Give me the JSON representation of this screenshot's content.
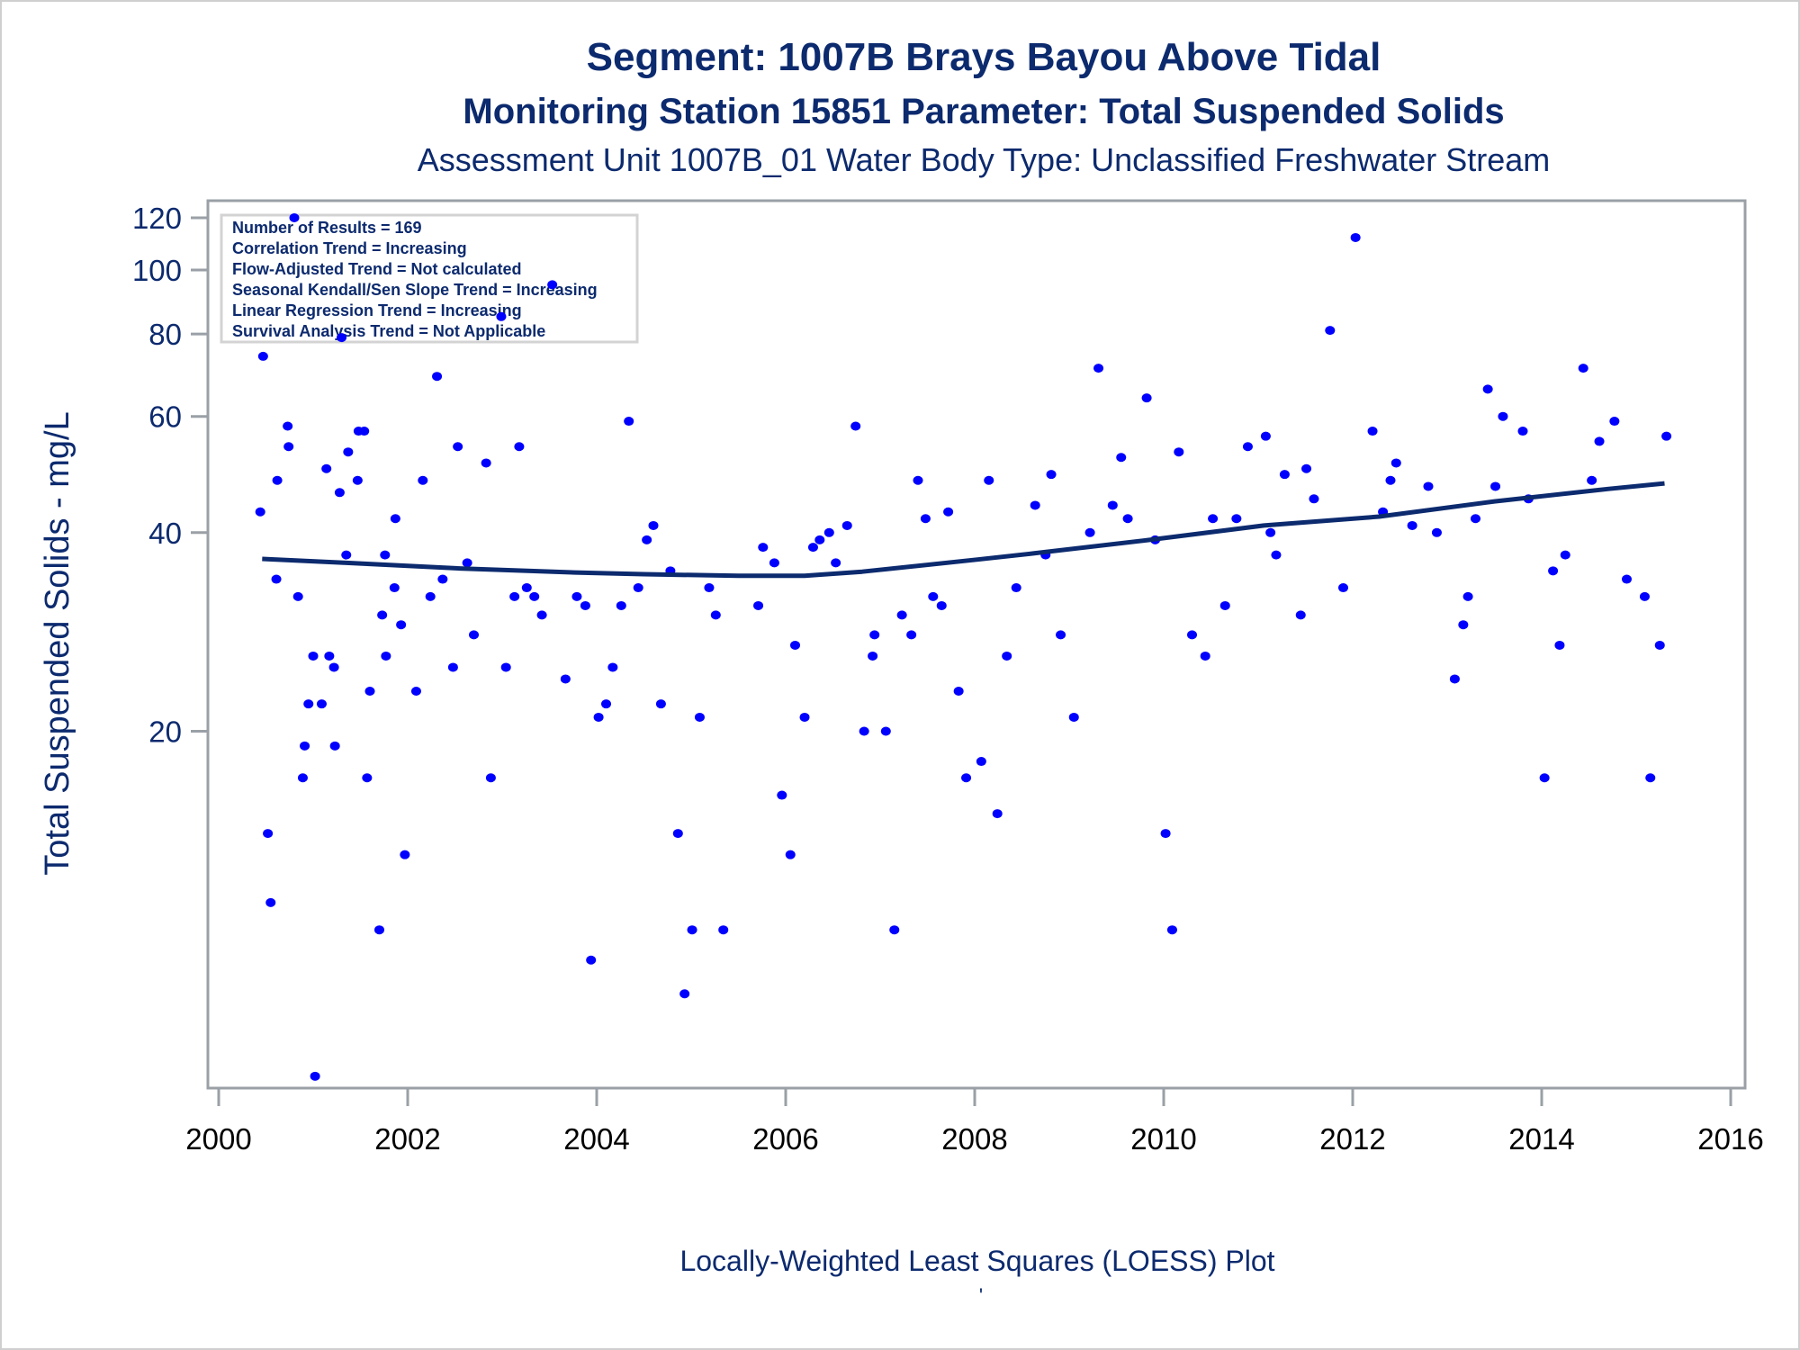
{
  "chart_data": {
    "type": "scatter",
    "title": "Segment: 1007B  Brays Bayou Above Tidal",
    "subtitle": "Monitoring Station 15851 Parameter: Total Suspended Solids",
    "subtitle2": "Assessment Unit 1007B_01    Water Body Type: Unclassified Freshwater Stream",
    "xlabel": "",
    "ylabel": "Total Suspended Solids - mg/L",
    "footnote": "Locally-Weighted Least Squares (LOESS) Plot",
    "footnote_mark": "'",
    "xlim": [
      2000,
      2016
    ],
    "ylim": [
      5.8,
      127
    ],
    "yscale": "log",
    "grid": false,
    "xticks": [
      "2000",
      "2002",
      "2004",
      "2006",
      "2008",
      "2010",
      "2012",
      "2014",
      "2016"
    ],
    "yticks": [
      "20",
      "40",
      "60",
      "80",
      "100",
      "120"
    ],
    "colors": {
      "points": "#0000ff",
      "loess": "#0c2a6e",
      "text": "#0c2a6e",
      "axis": "#9aa0a6"
    },
    "stats_box": {
      "placement": "top-left",
      "lines": [
        "Number of Results = 169",
        "Correlation Trend = Increasing",
        "Flow-Adjusted Trend = Not calculated",
        "Seasonal Kendall/Sen Slope Trend = Increasing",
        "Linear Regression Trend = Increasing",
        "Survival Analysis Trend = Not Applicable"
      ]
    },
    "series": [
      {
        "name": "Observations",
        "type": "scatter",
        "points": [
          [
            2000.44,
            43
          ],
          [
            2000.47,
            74
          ],
          [
            2000.52,
            14
          ],
          [
            2000.55,
            11
          ],
          [
            2000.61,
            34
          ],
          [
            2000.62,
            48
          ],
          [
            2000.73,
            58
          ],
          [
            2000.74,
            54
          ],
          [
            2000.8,
            120
          ],
          [
            2000.84,
            32
          ],
          [
            2000.89,
            17
          ],
          [
            2000.91,
            19
          ],
          [
            2000.95,
            22
          ],
          [
            2001.0,
            26
          ],
          [
            2001.02,
            6
          ],
          [
            2001.09,
            22
          ],
          [
            2001.14,
            50
          ],
          [
            2001.17,
            26
          ],
          [
            2001.22,
            25
          ],
          [
            2001.23,
            19
          ],
          [
            2001.28,
            46
          ],
          [
            2001.3,
            79
          ],
          [
            2001.35,
            37
          ],
          [
            2001.37,
            53
          ],
          [
            2001.47,
            48
          ],
          [
            2001.48,
            57
          ],
          [
            2001.54,
            57
          ],
          [
            2001.57,
            17
          ],
          [
            2001.6,
            23
          ],
          [
            2001.7,
            10
          ],
          [
            2001.73,
            30
          ],
          [
            2001.76,
            37
          ],
          [
            2001.77,
            26
          ],
          [
            2001.86,
            33
          ],
          [
            2001.87,
            42
          ],
          [
            2001.93,
            29
          ],
          [
            2001.97,
            13
          ],
          [
            2002.09,
            23
          ],
          [
            2002.16,
            48
          ],
          [
            2002.24,
            32
          ],
          [
            2002.31,
            69
          ],
          [
            2002.37,
            34
          ],
          [
            2002.48,
            25
          ],
          [
            2002.53,
            54
          ],
          [
            2002.63,
            36
          ],
          [
            2002.7,
            28
          ],
          [
            2002.83,
            51
          ],
          [
            2002.88,
            17
          ],
          [
            2002.99,
            85
          ],
          [
            2003.04,
            25
          ],
          [
            2003.13,
            32
          ],
          [
            2003.18,
            54
          ],
          [
            2003.26,
            33
          ],
          [
            2003.34,
            32
          ],
          [
            2003.42,
            30
          ],
          [
            2003.53,
            95
          ],
          [
            2003.67,
            24
          ],
          [
            2003.79,
            32
          ],
          [
            2003.88,
            31
          ],
          [
            2003.94,
            9
          ],
          [
            2004.02,
            21
          ],
          [
            2004.1,
            22
          ],
          [
            2004.17,
            25
          ],
          [
            2004.26,
            31
          ],
          [
            2004.34,
            59
          ],
          [
            2004.44,
            33
          ],
          [
            2004.53,
            39
          ],
          [
            2004.6,
            41
          ],
          [
            2004.68,
            22
          ],
          [
            2004.78,
            35
          ],
          [
            2004.86,
            14
          ],
          [
            2004.93,
            8
          ],
          [
            2005.01,
            10
          ],
          [
            2005.09,
            21
          ],
          [
            2005.19,
            33
          ],
          [
            2005.26,
            30
          ],
          [
            2005.34,
            10
          ],
          [
            2005.71,
            31
          ],
          [
            2005.76,
            38
          ],
          [
            2005.88,
            36
          ],
          [
            2005.96,
            16
          ],
          [
            2006.05,
            13
          ],
          [
            2006.1,
            27
          ],
          [
            2006.2,
            21
          ],
          [
            2006.29,
            38
          ],
          [
            2006.36,
            39
          ],
          [
            2006.46,
            40
          ],
          [
            2006.53,
            36
          ],
          [
            2006.65,
            41
          ],
          [
            2006.74,
            58
          ],
          [
            2006.83,
            20
          ],
          [
            2006.92,
            26
          ],
          [
            2006.94,
            28
          ],
          [
            2007.06,
            20
          ],
          [
            2007.15,
            10
          ],
          [
            2007.23,
            30
          ],
          [
            2007.33,
            28
          ],
          [
            2007.4,
            48
          ],
          [
            2007.48,
            42
          ],
          [
            2007.56,
            32
          ],
          [
            2007.65,
            31
          ],
          [
            2007.72,
            43
          ],
          [
            2007.83,
            23
          ],
          [
            2007.91,
            17
          ],
          [
            2008.07,
            18
          ],
          [
            2008.15,
            48
          ],
          [
            2008.24,
            15
          ],
          [
            2008.34,
            26
          ],
          [
            2008.44,
            33
          ],
          [
            2008.64,
            44
          ],
          [
            2008.75,
            37
          ],
          [
            2008.81,
            49
          ],
          [
            2008.91,
            28
          ],
          [
            2009.05,
            21
          ],
          [
            2009.22,
            40
          ],
          [
            2009.31,
            71
          ],
          [
            2009.46,
            44
          ],
          [
            2009.55,
            52
          ],
          [
            2009.62,
            42
          ],
          [
            2009.82,
            64
          ],
          [
            2009.91,
            39
          ],
          [
            2010.02,
            14
          ],
          [
            2010.09,
            10
          ],
          [
            2010.16,
            53
          ],
          [
            2010.3,
            28
          ],
          [
            2010.44,
            26
          ],
          [
            2010.52,
            42
          ],
          [
            2010.65,
            31
          ],
          [
            2010.77,
            42
          ],
          [
            2010.89,
            54
          ],
          [
            2011.08,
            56
          ],
          [
            2011.13,
            40
          ],
          [
            2011.19,
            37
          ],
          [
            2011.28,
            49
          ],
          [
            2011.45,
            30
          ],
          [
            2011.51,
            50
          ],
          [
            2011.59,
            45
          ],
          [
            2011.76,
            81
          ],
          [
            2011.9,
            33
          ],
          [
            2012.03,
            112
          ],
          [
            2012.21,
            57
          ],
          [
            2012.32,
            43
          ],
          [
            2012.4,
            48
          ],
          [
            2012.46,
            51
          ],
          [
            2012.63,
            41
          ],
          [
            2012.8,
            47
          ],
          [
            2012.89,
            40
          ],
          [
            2013.08,
            24
          ],
          [
            2013.17,
            29
          ],
          [
            2013.22,
            32
          ],
          [
            2013.3,
            42
          ],
          [
            2013.43,
            66
          ],
          [
            2013.51,
            47
          ],
          [
            2013.59,
            60
          ],
          [
            2013.8,
            57
          ],
          [
            2013.86,
            45
          ],
          [
            2014.03,
            17
          ],
          [
            2014.12,
            35
          ],
          [
            2014.19,
            27
          ],
          [
            2014.25,
            37
          ],
          [
            2014.44,
            71
          ],
          [
            2014.53,
            48
          ],
          [
            2014.61,
            55
          ],
          [
            2014.77,
            59
          ],
          [
            2014.9,
            34
          ],
          [
            2015.09,
            32
          ],
          [
            2015.15,
            17
          ],
          [
            2015.25,
            27
          ],
          [
            2015.32,
            56
          ]
        ]
      },
      {
        "name": "LOESS",
        "type": "line",
        "points": [
          [
            2000.46,
            36.5
          ],
          [
            2001.33,
            36.0
          ],
          [
            2002.55,
            35.3
          ],
          [
            2003.77,
            34.8
          ],
          [
            2004.5,
            34.6
          ],
          [
            2005.5,
            34.4
          ],
          [
            2006.2,
            34.4
          ],
          [
            2006.81,
            34.9
          ],
          [
            2008.02,
            36.4
          ],
          [
            2008.62,
            37.2
          ],
          [
            2009.85,
            39.0
          ],
          [
            2011.06,
            41.0
          ],
          [
            2012.28,
            42.3
          ],
          [
            2013.5,
            44.6
          ],
          [
            2014.71,
            46.6
          ],
          [
            2015.3,
            47.5
          ]
        ]
      }
    ]
  }
}
